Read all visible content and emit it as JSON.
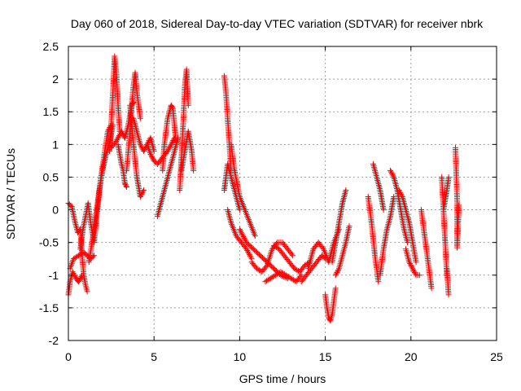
{
  "chart_data": {
    "type": "scatter",
    "title": "Day 060 of 2018, Sidereal Day-to-day VTEC variation (SDTVAR) for receiver nbrk",
    "xlabel": "GPS time / hours",
    "ylabel": "SDTVAR / TECUs",
    "xlim": [
      0,
      25
    ],
    "ylim": [
      -2,
      2.5
    ],
    "xticks": [
      0,
      5,
      10,
      15,
      20,
      25
    ],
    "xtick_labels": [
      "0",
      "5",
      "10",
      "15",
      "20",
      "25"
    ],
    "yticks": [
      -2,
      -1.5,
      -1,
      -0.5,
      0,
      0.5,
      1,
      1.5,
      2,
      2.5
    ],
    "ytick_labels": [
      "-2",
      "-1.5",
      "-1",
      "-0.5",
      "0",
      "0.5",
      "1",
      "1.5",
      "2",
      "2.5"
    ],
    "grid": true,
    "marker": "+",
    "series": [
      {
        "name": "SDTVAR",
        "color": "#ff0000",
        "tracks": [
          {
            "x": [
              0.0,
              0.2,
              0.4,
              0.55,
              0.7
            ],
            "y": [
              0.1,
              0.05,
              -0.2,
              -0.35,
              -0.3
            ]
          },
          {
            "x": [
              0.0,
              0.1,
              0.25,
              0.45,
              0.6,
              0.8
            ],
            "y": [
              -1.3,
              -1.1,
              -0.95,
              -1.05,
              -1.1,
              -1.0
            ]
          },
          {
            "x": [
              0.1,
              0.3,
              0.6,
              0.9,
              1.1,
              1.3,
              1.5
            ],
            "y": [
              -0.9,
              -0.75,
              -0.7,
              -0.65,
              -0.7,
              -0.75,
              -0.7
            ]
          },
          {
            "x": [
              0.7,
              0.8,
              0.9,
              1.0,
              1.1
            ],
            "y": [
              -0.3,
              -0.7,
              -1.0,
              -1.15,
              -1.25
            ]
          },
          {
            "x": [
              0.7,
              0.85,
              1.0,
              1.15,
              1.3,
              1.5,
              1.7,
              1.9,
              2.1,
              2.3,
              2.5
            ],
            "y": [
              -0.6,
              -0.3,
              -0.1,
              0.1,
              -0.2,
              -0.5,
              0.0,
              0.5,
              0.85,
              1.2,
              1.3
            ]
          },
          {
            "x": [
              1.2,
              1.5,
              1.8,
              2.0,
              2.2,
              2.4,
              2.6
            ],
            "y": [
              -0.8,
              -0.3,
              0.3,
              0.6,
              0.85,
              1.0,
              1.3
            ]
          },
          {
            "x": [
              2.4,
              2.5,
              2.6,
              2.7,
              2.8,
              2.9,
              3.0
            ],
            "y": [
              0.9,
              1.3,
              1.8,
              2.35,
              2.1,
              1.6,
              1.2
            ]
          },
          {
            "x": [
              2.5,
              2.8,
              3.1,
              3.3,
              3.5,
              3.7,
              3.8
            ],
            "y": [
              0.95,
              1.05,
              1.2,
              1.1,
              1.3,
              1.6,
              1.65
            ]
          },
          {
            "x": [
              2.9,
              3.1,
              3.2,
              3.3,
              3.4
            ],
            "y": [
              1.0,
              0.7,
              0.6,
              0.4,
              0.35
            ]
          },
          {
            "x": [
              3.4,
              3.5,
              3.6,
              3.7,
              3.8,
              3.9,
              4.0,
              4.2
            ],
            "y": [
              0.6,
              0.9,
              1.2,
              1.6,
              1.9,
              2.1,
              1.8,
              1.4
            ]
          },
          {
            "x": [
              3.8,
              4.0,
              4.2,
              4.4,
              4.6,
              4.8,
              5.0
            ],
            "y": [
              1.4,
              1.2,
              1.0,
              0.9,
              1.0,
              1.1,
              0.9
            ]
          },
          {
            "x": [
              3.6,
              3.8,
              4.0,
              4.2,
              4.4
            ],
            "y": [
              1.6,
              1.0,
              0.5,
              0.2,
              0.3
            ]
          },
          {
            "x": [
              4.6,
              4.8,
              5.0,
              5.2,
              5.5,
              5.8,
              6.0,
              6.2
            ],
            "y": [
              1.0,
              0.85,
              0.75,
              0.7,
              0.8,
              0.9,
              1.0,
              1.1
            ]
          },
          {
            "x": [
              5.2,
              5.4,
              5.6,
              5.8,
              6.0,
              6.2,
              6.4
            ],
            "y": [
              -0.1,
              0.1,
              0.3,
              0.5,
              0.7,
              0.9,
              1.1
            ]
          },
          {
            "x": [
              5.5,
              5.6,
              5.8,
              6.0,
              6.1,
              6.3
            ],
            "y": [
              0.6,
              1.0,
              1.4,
              1.6,
              1.55,
              1.0
            ]
          },
          {
            "x": [
              6.5,
              6.6,
              6.7,
              6.8,
              6.9,
              7.0
            ],
            "y": [
              0.3,
              0.8,
              1.3,
              1.9,
              2.15,
              1.6
            ]
          },
          {
            "x": [
              6.6,
              6.8,
              7.0,
              7.2,
              7.3
            ],
            "y": [
              0.6,
              0.9,
              1.2,
              0.9,
              0.6
            ]
          },
          {
            "x": [
              9.1,
              9.2,
              9.3,
              9.4,
              9.5
            ],
            "y": [
              2.05,
              1.8,
              1.4,
              1.0,
              0.6
            ]
          },
          {
            "x": [
              9.1,
              9.2,
              9.3,
              9.4,
              9.6,
              9.8,
              10.0
            ],
            "y": [
              0.3,
              0.5,
              0.7,
              0.6,
              0.4,
              0.2,
              0.0
            ]
          },
          {
            "x": [
              9.3,
              9.5,
              9.8,
              10.1,
              10.4,
              10.7
            ],
            "y": [
              0.0,
              -0.2,
              -0.4,
              -0.5,
              -0.6,
              -0.75
            ]
          },
          {
            "x": [
              9.5,
              9.7,
              10.0,
              10.3,
              10.6,
              10.9
            ],
            "y": [
              1.0,
              0.6,
              0.2,
              0.0,
              -0.2,
              -0.4
            ]
          },
          {
            "x": [
              10.7,
              11.0,
              11.3,
              11.6,
              11.9,
              12.2,
              12.5,
              12.8,
              13.1
            ],
            "y": [
              -0.8,
              -0.9,
              -0.95,
              -0.85,
              -0.6,
              -0.5,
              -0.5,
              -0.6,
              -0.7
            ]
          },
          {
            "x": [
              10.0,
              10.4,
              10.8,
              11.2,
              11.6,
              12.0,
              12.4,
              12.8
            ],
            "y": [
              -0.3,
              -0.5,
              -0.6,
              -0.7,
              -0.8,
              -0.9,
              -1.0,
              -1.05
            ]
          },
          {
            "x": [
              11.5,
              11.8,
              12.1,
              12.4,
              12.7,
              13.0,
              13.3,
              13.6
            ],
            "y": [
              -1.1,
              -1.05,
              -1.0,
              -0.95,
              -1.0,
              -1.05,
              -1.1,
              -1.0
            ]
          },
          {
            "x": [
              12.0,
              12.3,
              12.6,
              12.9,
              13.2,
              13.5,
              13.8,
              14.1
            ],
            "y": [
              -0.55,
              -0.6,
              -0.7,
              -0.8,
              -0.9,
              -0.95,
              -0.85,
              -0.8
            ]
          },
          {
            "x": [
              13.6,
              13.9,
              14.2,
              14.5,
              14.8,
              15.0
            ],
            "y": [
              -1.1,
              -1.0,
              -0.9,
              -0.8,
              -0.7,
              -0.75
            ]
          },
          {
            "x": [
              14.0,
              14.3,
              14.6,
              14.9,
              15.2,
              15.5,
              15.8
            ],
            "y": [
              -0.9,
              -0.6,
              -0.5,
              -0.6,
              -0.8,
              -0.5,
              -0.3
            ]
          },
          {
            "x": [
              15.0,
              15.1,
              15.2,
              15.3,
              15.4,
              15.5,
              15.6
            ],
            "y": [
              -1.3,
              -1.5,
              -1.65,
              -1.7,
              -1.6,
              -1.4,
              -1.2
            ]
          },
          {
            "x": [
              15.4,
              15.6,
              15.8,
              16.0,
              16.2
            ],
            "y": [
              -0.8,
              -0.5,
              -0.2,
              0.1,
              0.3
            ]
          },
          {
            "x": [
              15.6,
              15.8,
              16.0,
              16.2,
              16.4
            ],
            "y": [
              -1.0,
              -0.9,
              -0.7,
              -0.5,
              -0.25
            ]
          },
          {
            "x": [
              17.5,
              17.7,
              17.9,
              18.1
            ],
            "y": [
              0.2,
              -0.2,
              -0.7,
              -1.1
            ]
          },
          {
            "x": [
              17.8,
              18.0,
              18.2,
              18.4
            ],
            "y": [
              0.7,
              0.5,
              0.3,
              0.0
            ]
          },
          {
            "x": [
              18.2,
              18.4,
              18.6,
              18.8,
              19.0
            ],
            "y": [
              -1.0,
              -0.6,
              -0.3,
              -0.1,
              0.2
            ]
          },
          {
            "x": [
              18.8,
              19.0,
              19.2,
              19.4,
              19.6,
              19.8
            ],
            "y": [
              0.6,
              0.5,
              0.3,
              0.0,
              -0.3,
              -0.5
            ]
          },
          {
            "x": [
              19.3,
              19.5,
              19.7,
              19.9,
              20.1,
              20.3
            ],
            "y": [
              0.3,
              0.2,
              0.0,
              -0.2,
              -0.5,
              -0.8
            ]
          },
          {
            "x": [
              19.7,
              19.9,
              20.1,
              20.3,
              20.5
            ],
            "y": [
              -0.6,
              -0.8,
              -0.9,
              -1.0,
              -1.0
            ]
          },
          {
            "x": [
              20.6,
              20.8,
              21.0,
              21.2
            ],
            "y": [
              0.0,
              -0.4,
              -0.8,
              -1.2
            ]
          },
          {
            "x": [
              21.8,
              21.9,
              22.0,
              22.1
            ],
            "y": [
              0.5,
              0.0,
              -0.5,
              -1.0
            ]
          },
          {
            "x": [
              21.9,
              22.1,
              22.2
            ],
            "y": [
              0.0,
              0.3,
              0.5
            ]
          },
          {
            "x": [
              22.1,
              22.2
            ],
            "y": [
              -0.9,
              -1.3
            ]
          },
          {
            "x": [
              22.6,
              22.7,
              22.7,
              22.8
            ],
            "y": [
              0.95,
              0.12,
              -0.58,
              0.07
            ]
          }
        ]
      }
    ]
  }
}
